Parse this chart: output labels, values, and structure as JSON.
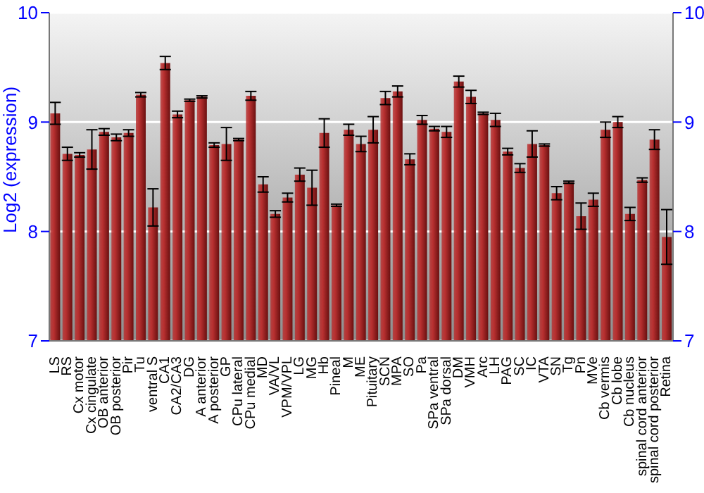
{
  "chart_data": {
    "type": "bar",
    "ylabel": "Log2 (expression)",
    "categories": [
      "LS",
      "RS",
      "Cx motor",
      "Cx cingulate",
      "OB anterior",
      "OB posterior",
      "Pir",
      "Tu",
      "ventral S",
      "CA1",
      "CA2/CA3",
      "DG",
      "A anterior",
      "A posterior",
      "GP",
      "CPu lateral",
      "CPu medial",
      "MD",
      "VA/VL",
      "VPM/VPL",
      "LG",
      "MG",
      "Hb",
      "Pineal",
      "M",
      "ME",
      "Pituitary",
      "SCN",
      "MPA",
      "SO",
      "Pa",
      "SPa ventral",
      "SPa dorsal",
      "DM",
      "VMH",
      "Arc",
      "LH",
      "PAG",
      "SC",
      "IC",
      "VTA",
      "SN",
      "Tg",
      "Pn",
      "MVe",
      "Cb vermis",
      "Cb lobe",
      "Cb nucleus",
      "spinal cord anterior",
      "spinal cord posterior",
      "Retina"
    ],
    "values": [
      9.08,
      8.71,
      8.7,
      8.75,
      8.91,
      8.86,
      8.9,
      9.25,
      8.22,
      9.54,
      9.07,
      9.2,
      9.23,
      8.79,
      8.8,
      8.84,
      9.24,
      8.43,
      8.16,
      8.31,
      8.52,
      8.4,
      8.9,
      8.24,
      8.93,
      8.8,
      8.93,
      9.22,
      9.28,
      8.66,
      9.02,
      8.94,
      8.91,
      9.37,
      9.23,
      9.08,
      9.02,
      8.73,
      8.58,
      8.8,
      8.79,
      8.35,
      8.45,
      8.14,
      8.29,
      8.93,
      9.0,
      8.16,
      8.47,
      8.84,
      7.95
    ],
    "errors": [
      0.1,
      0.06,
      0.02,
      0.18,
      0.03,
      0.03,
      0.03,
      0.02,
      0.17,
      0.06,
      0.03,
      0.01,
      0.01,
      0.02,
      0.15,
      0.01,
      0.04,
      0.07,
      0.03,
      0.04,
      0.06,
      0.16,
      0.13,
      0.01,
      0.05,
      0.07,
      0.12,
      0.06,
      0.05,
      0.05,
      0.04,
      0.02,
      0.05,
      0.05,
      0.06,
      0.01,
      0.06,
      0.03,
      0.04,
      0.12,
      0.01,
      0.06,
      0.01,
      0.12,
      0.06,
      0.07,
      0.05,
      0.06,
      0.02,
      0.09,
      0.25
    ],
    "color": "#b83030",
    "ylim": [
      7,
      10
    ],
    "yticks": [
      7,
      8,
      9,
      10
    ],
    "y2lim": [
      7,
      10
    ],
    "y2ticks": [
      7,
      8,
      9,
      10
    ],
    "grid": "y"
  }
}
